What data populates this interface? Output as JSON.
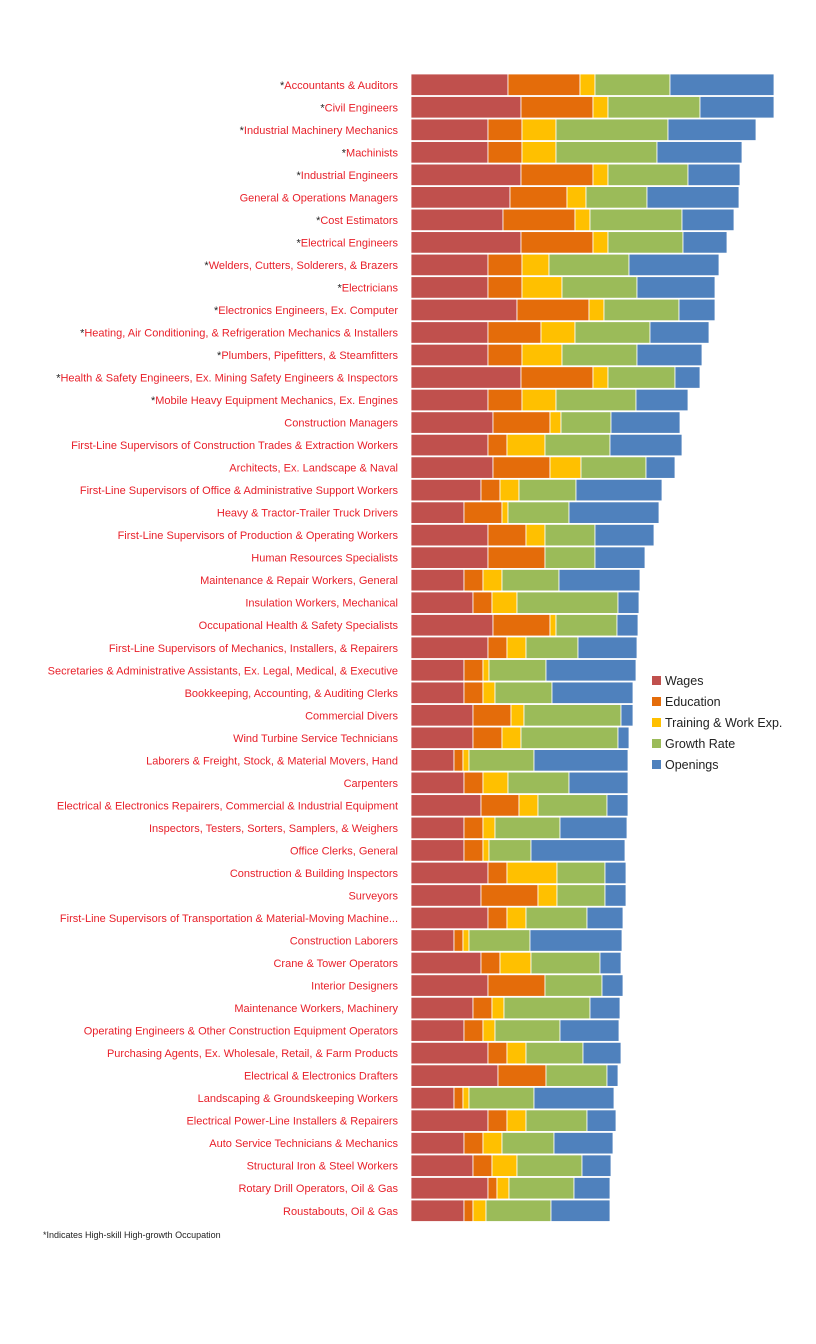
{
  "chart_data": {
    "type": "bar",
    "orientation": "horizontal",
    "stacked": true,
    "grid": false,
    "legend_position": "right",
    "categories": [
      {
        "mark": "*",
        "name": "Accountants & Auditors"
      },
      {
        "mark": "*",
        "name": "Civil Engineers"
      },
      {
        "mark": "*",
        "name": "Industrial Machinery Mechanics"
      },
      {
        "mark": "*",
        "name": "Machinists"
      },
      {
        "mark": "*",
        "name": "Industrial Engineers"
      },
      {
        "mark": "",
        "name": "General & Operations Managers"
      },
      {
        "mark": "*",
        "name": "Cost Estimators"
      },
      {
        "mark": "*",
        "name": "Electrical Engineers"
      },
      {
        "mark": "*",
        "name": "Welders, Cutters, Solderers, & Brazers"
      },
      {
        "mark": "*",
        "name": "Electricians"
      },
      {
        "mark": "*",
        "name": "Electronics Engineers, Ex. Computer"
      },
      {
        "mark": "*",
        "name": "Heating, Air Conditioning, & Refrigeration Mechanics & Installers"
      },
      {
        "mark": "*",
        "name": "Plumbers, Pipefitters, & Steamfitters"
      },
      {
        "mark": "*",
        "name": "Health & Safety Engineers, Ex. Mining Safety Engineers & Inspectors"
      },
      {
        "mark": "*",
        "name": "Mobile Heavy Equipment Mechanics, Ex. Engines"
      },
      {
        "mark": "",
        "name": "Construction Managers"
      },
      {
        "mark": "",
        "name": "First-Line Supervisors of Construction Trades & Extraction Workers"
      },
      {
        "mark": "",
        "name": "Architects, Ex. Landscape & Naval"
      },
      {
        "mark": "",
        "name": "First-Line Supervisors of Office & Administrative Support Workers"
      },
      {
        "mark": "",
        "name": "Heavy & Tractor-Trailer Truck Drivers"
      },
      {
        "mark": "",
        "name": "First-Line Supervisors of Production & Operating Workers"
      },
      {
        "mark": "",
        "name": "Human Resources Specialists"
      },
      {
        "mark": "",
        "name": "Maintenance & Repair Workers, General"
      },
      {
        "mark": "",
        "name": "Insulation Workers, Mechanical"
      },
      {
        "mark": "",
        "name": "Occupational Health & Safety Specialists"
      },
      {
        "mark": "",
        "name": "First-Line Supervisors of Mechanics, Installers, & Repairers"
      },
      {
        "mark": "",
        "name": "Secretaries & Administrative Assistants, Ex. Legal, Medical, & Executive"
      },
      {
        "mark": "",
        "name": "Bookkeeping, Accounting, & Auditing Clerks"
      },
      {
        "mark": "",
        "name": "Commercial Divers"
      },
      {
        "mark": "",
        "name": "Wind Turbine Service Technicians"
      },
      {
        "mark": "",
        "name": "Laborers & Freight, Stock, & Material Movers, Hand"
      },
      {
        "mark": "",
        "name": "Carpenters"
      },
      {
        "mark": "",
        "name": "Electrical & Electronics Repairers, Commercial & Industrial Equipment"
      },
      {
        "mark": "",
        "name": "Inspectors, Testers, Sorters, Samplers, & Weighers"
      },
      {
        "mark": "",
        "name": "Office Clerks, General"
      },
      {
        "mark": "",
        "name": "Construction & Building Inspectors"
      },
      {
        "mark": "",
        "name": "Surveyors"
      },
      {
        "mark": "",
        "name": "First-Line Supervisors of Transportation & Material-Moving Machine..."
      },
      {
        "mark": "",
        "name": "Construction Laborers"
      },
      {
        "mark": "",
        "name": "Crane & Tower Operators"
      },
      {
        "mark": "",
        "name": "Interior Designers"
      },
      {
        "mark": "",
        "name": "Maintenance Workers, Machinery"
      },
      {
        "mark": "",
        "name": "Operating Engineers & Other Construction Equipment Operators"
      },
      {
        "mark": "",
        "name": "Purchasing Agents, Ex. Wholesale, Retail, & Farm Products"
      },
      {
        "mark": "",
        "name": "Electrical & Electronics Drafters"
      },
      {
        "mark": "",
        "name": "Landscaping & Groundskeeping Workers"
      },
      {
        "mark": "",
        "name": "Electrical Power-Line Installers & Repairers"
      },
      {
        "mark": "",
        "name": "Auto Service Technicians & Mechanics"
      },
      {
        "mark": "",
        "name": "Structural Iron & Steel Workers"
      },
      {
        "mark": "",
        "name": "Rotary Drill Operators, Oil & Gas"
      },
      {
        "mark": "",
        "name": "Roustabouts, Oil & Gas"
      }
    ],
    "series": [
      {
        "name": "Wages",
        "color": "#c0504d",
        "values": [
          97,
          110,
          77,
          77,
          110,
          99,
          92,
          110,
          77,
          77,
          106,
          77,
          77,
          110,
          77,
          82,
          77,
          82,
          70,
          53,
          77,
          77,
          53,
          62,
          82,
          77,
          53,
          53,
          62,
          62,
          43,
          53,
          70,
          53,
          53,
          77,
          70,
          77,
          43,
          70,
          77,
          62,
          53,
          77,
          87,
          43,
          77,
          53,
          62,
          77,
          53
        ]
      },
      {
        "name": "Education",
        "color": "#e46c0a",
        "values": [
          72,
          72,
          34,
          34,
          72,
          57,
          72,
          72,
          34,
          34,
          72,
          53,
          34,
          72,
          34,
          57,
          19,
          57,
          19,
          38,
          38,
          57,
          19,
          19,
          57,
          19,
          19,
          19,
          38,
          29,
          9,
          19,
          38,
          19,
          19,
          19,
          57,
          19,
          9,
          19,
          57,
          19,
          19,
          19,
          48,
          9,
          19,
          19,
          19,
          9,
          9
        ]
      },
      {
        "name": "Training & Work Exp.",
        "color": "#ffc000",
        "values": [
          15,
          15,
          34,
          34,
          15,
          19,
          15,
          15,
          27,
          40,
          15,
          34,
          40,
          15,
          34,
          11,
          38,
          31,
          19,
          6,
          19,
          0,
          19,
          25,
          6,
          19,
          6,
          12,
          13,
          19,
          6,
          25,
          19,
          12,
          6,
          50,
          19,
          19,
          6,
          31,
          0,
          12,
          12,
          19,
          0,
          6,
          19,
          19,
          25,
          12,
          13
        ]
      },
      {
        "name": "Growth Rate",
        "color": "#9bbb59",
        "values": [
          75,
          92,
          112,
          101,
          80,
          61,
          92,
          75,
          80,
          75,
          75,
          75,
          75,
          67,
          80,
          50,
          65,
          65,
          57,
          61,
          50,
          50,
          57,
          101,
          61,
          52,
          57,
          57,
          97,
          97,
          65,
          61,
          69,
          65,
          42,
          48,
          48,
          61,
          61,
          69,
          57,
          86,
          65,
          57,
          61,
          65,
          61,
          52,
          65,
          65,
          65
        ]
      },
      {
        "name": "Openings",
        "color": "#4f81bd",
        "values": [
          104,
          74,
          88,
          85,
          52,
          92,
          52,
          44,
          90,
          78,
          36,
          59,
          65,
          25,
          52,
          69,
          72,
          29,
          86,
          90,
          59,
          50,
          81,
          21,
          21,
          59,
          90,
          81,
          12,
          11,
          94,
          59,
          21,
          67,
          94,
          21,
          21,
          36,
          92,
          21,
          21,
          30,
          59,
          38,
          11,
          80,
          29,
          59,
          29,
          36,
          59
        ]
      }
    ],
    "footnote_mark": "*",
    "footnote_text": "Indicates High-skill High-growth Occupation"
  },
  "colors": {
    "label_text": "#e8202a",
    "bar_outline": "#ffffff"
  }
}
